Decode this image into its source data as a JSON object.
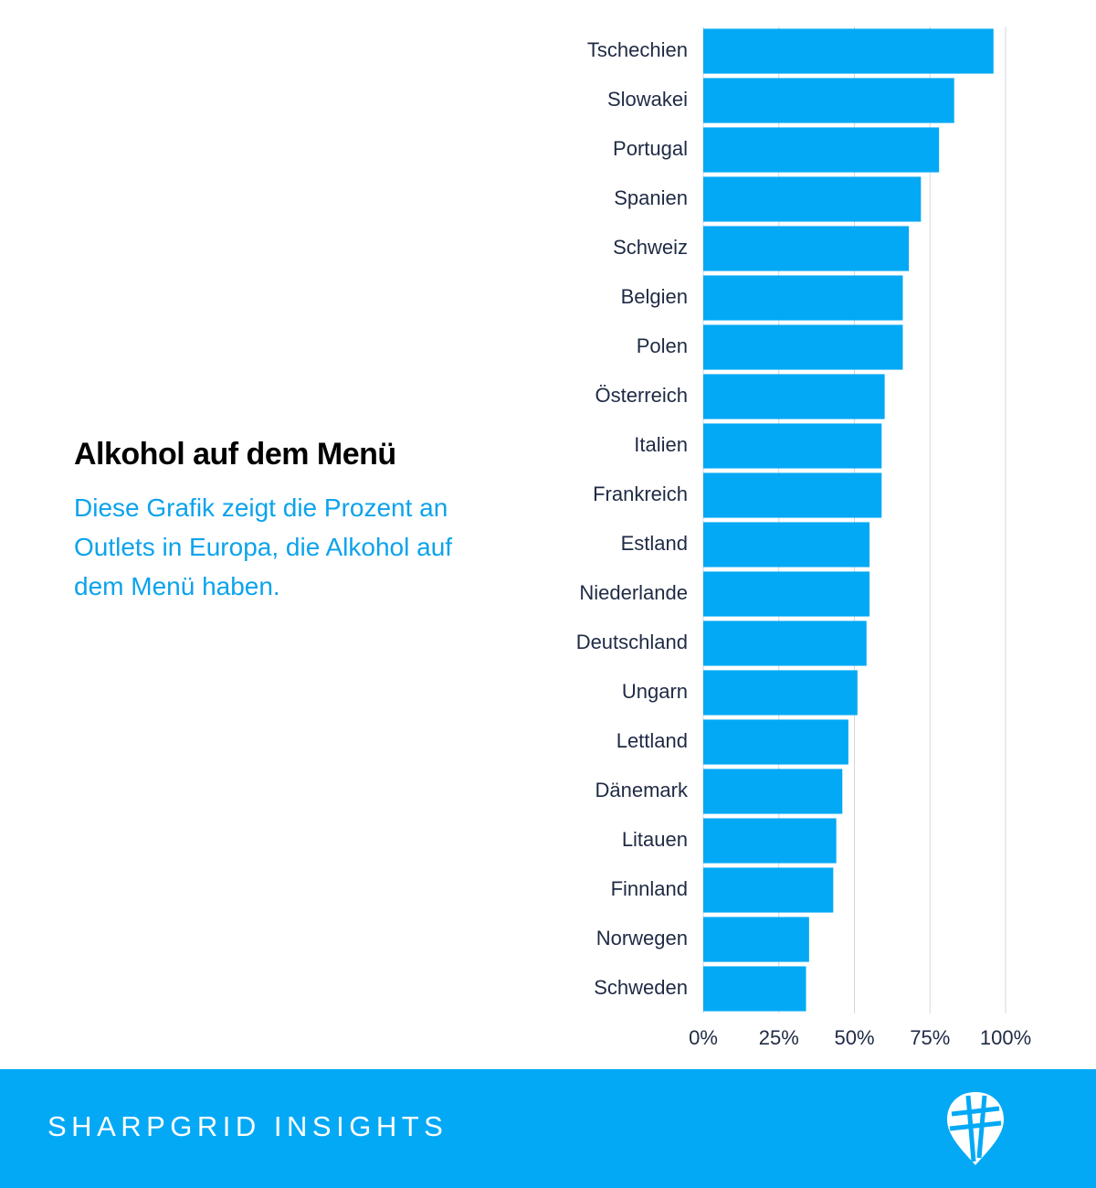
{
  "chart_data": {
    "type": "hbar",
    "title": "Alkohol auf dem Menü",
    "subtitle": "Diese Grafik zeigt die Prozent an Outlets in Europa, die Alkohol auf dem Menü haben.",
    "categories": [
      "Tschechien",
      "Slowakei",
      "Portugal",
      "Spanien",
      "Schweiz",
      "Belgien",
      "Polen",
      "Österreich",
      "Italien",
      "Frankreich",
      "Estland",
      "Niederlande",
      "Deutschland",
      "Ungarn",
      "Lettland",
      "Dänemark",
      "Litauen",
      "Finnland",
      "Norwegen",
      "Schweden"
    ],
    "values": [
      96,
      83,
      78,
      72,
      68,
      66,
      66,
      60,
      59,
      59,
      55,
      55,
      54,
      51,
      48,
      46,
      44,
      43,
      35,
      34
    ],
    "color": "#03a9f4",
    "xlim": [
      0,
      100
    ],
    "xticks": [
      {
        "value": 0,
        "label": "0%"
      },
      {
        "value": 25,
        "label": "25%"
      },
      {
        "value": 50,
        "label": "50%"
      },
      {
        "value": 75,
        "label": "75%"
      },
      {
        "value": 100,
        "label": "100%"
      }
    ],
    "grid": true
  },
  "footer": {
    "brand": "SHARPGRID INSIGHTS"
  }
}
